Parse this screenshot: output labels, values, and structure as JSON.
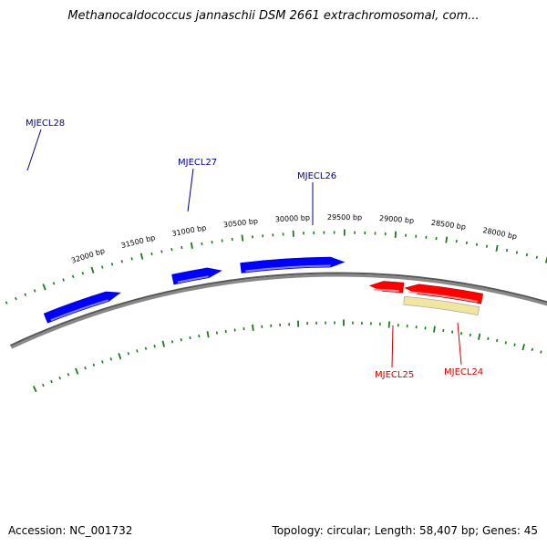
{
  "title": "Methanocaldococcus jannaschii DSM 2661 extrachromosomal, com...",
  "footer": {
    "accession": "Accession: NC_001732",
    "summary": "Topology: circular; Length: 58,407 bp; Genes: 45"
  },
  "colors": {
    "forward_gene": "#0000ff",
    "reverse_gene": "#ff0000",
    "feature_band": "#f0e6a0",
    "backbone": "#888888",
    "ticks": "#1a7a1a",
    "forward_label": "#00008b",
    "reverse_label": "#cc0000"
  },
  "scale": {
    "ticks": [
      {
        "bp": 32000,
        "label": "32000 bp"
      },
      {
        "bp": 31500,
        "label": "31500 bp"
      },
      {
        "bp": 31000,
        "label": "31000 bp"
      },
      {
        "bp": 30500,
        "label": "30500 bp"
      },
      {
        "bp": 30000,
        "label": "30000 bp"
      },
      {
        "bp": 29500,
        "label": "29500 bp"
      },
      {
        "bp": 29000,
        "label": "29000 bp"
      },
      {
        "bp": 28500,
        "label": "28500 bp"
      },
      {
        "bp": 28000,
        "label": "28000 bp"
      }
    ]
  },
  "genes": [
    {
      "name": "MJECL28",
      "strand": "+",
      "start": 31800,
      "end": 32600
    },
    {
      "name": "MJECL27",
      "strand": "+",
      "start": 30750,
      "end": 31250
    },
    {
      "name": "MJECL26",
      "strand": "+",
      "start": 29500,
      "end": 30550
    },
    {
      "name": "MJECL25",
      "strand": "-",
      "start": 28880,
      "end": 29230
    },
    {
      "name": "MJECL24",
      "strand": "-",
      "start": 28050,
      "end": 28860
    }
  ]
}
